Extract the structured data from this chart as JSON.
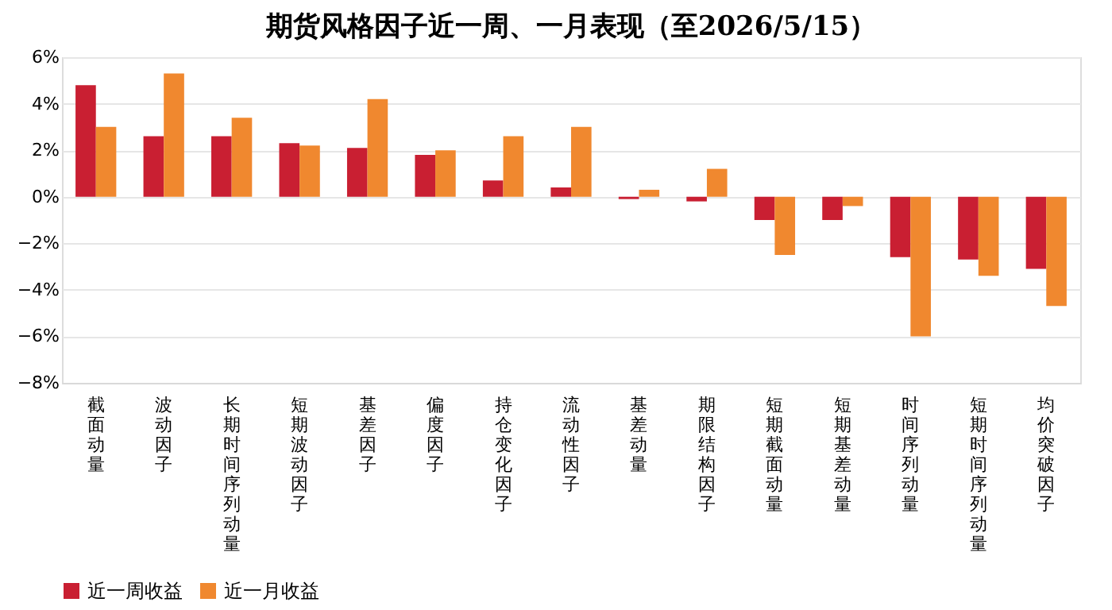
{
  "chart_data": {
    "type": "bar",
    "title": "期货风格因子近一周、一月表现（至2026/5/15）",
    "categories": [
      "截面动量",
      "波动因子",
      "长期时间序列动量",
      "短期波动因子",
      "基差因子",
      "偏度因子",
      "持仓变化因子",
      "流动性因子",
      "基差动量",
      "期限结构因子",
      "短期截面动量",
      "短期基差动量",
      "时间序列动量",
      "短期时间序列动量",
      "均价突破因子"
    ],
    "series": [
      {
        "name": "近一周收益",
        "color": "#c91f32",
        "values": [
          4.8,
          2.6,
          2.6,
          2.3,
          2.1,
          1.8,
          0.7,
          0.4,
          -0.1,
          -0.2,
          -1.0,
          -1.0,
          -2.6,
          -2.7,
          -3.1
        ]
      },
      {
        "name": "近一月收益",
        "color": "#f0882f",
        "values": [
          3.0,
          5.3,
          3.4,
          2.2,
          4.2,
          2.0,
          2.6,
          3.0,
          0.3,
          1.2,
          -2.5,
          -0.4,
          -6.0,
          -3.4,
          -4.7
        ]
      }
    ],
    "ylim": [
      -8,
      6
    ],
    "yticks": [
      {
        "value": -8,
        "label": "−8%"
      },
      {
        "value": -6,
        "label": "−6%"
      },
      {
        "value": -4,
        "label": "−4%"
      },
      {
        "value": -2,
        "label": "−2%"
      },
      {
        "value": 0,
        "label": "0%"
      },
      {
        "value": 2,
        "label": "2%"
      },
      {
        "value": 4,
        "label": "4%"
      },
      {
        "value": 6,
        "label": "6%"
      }
    ],
    "grid": "y",
    "legend": "bottom"
  }
}
